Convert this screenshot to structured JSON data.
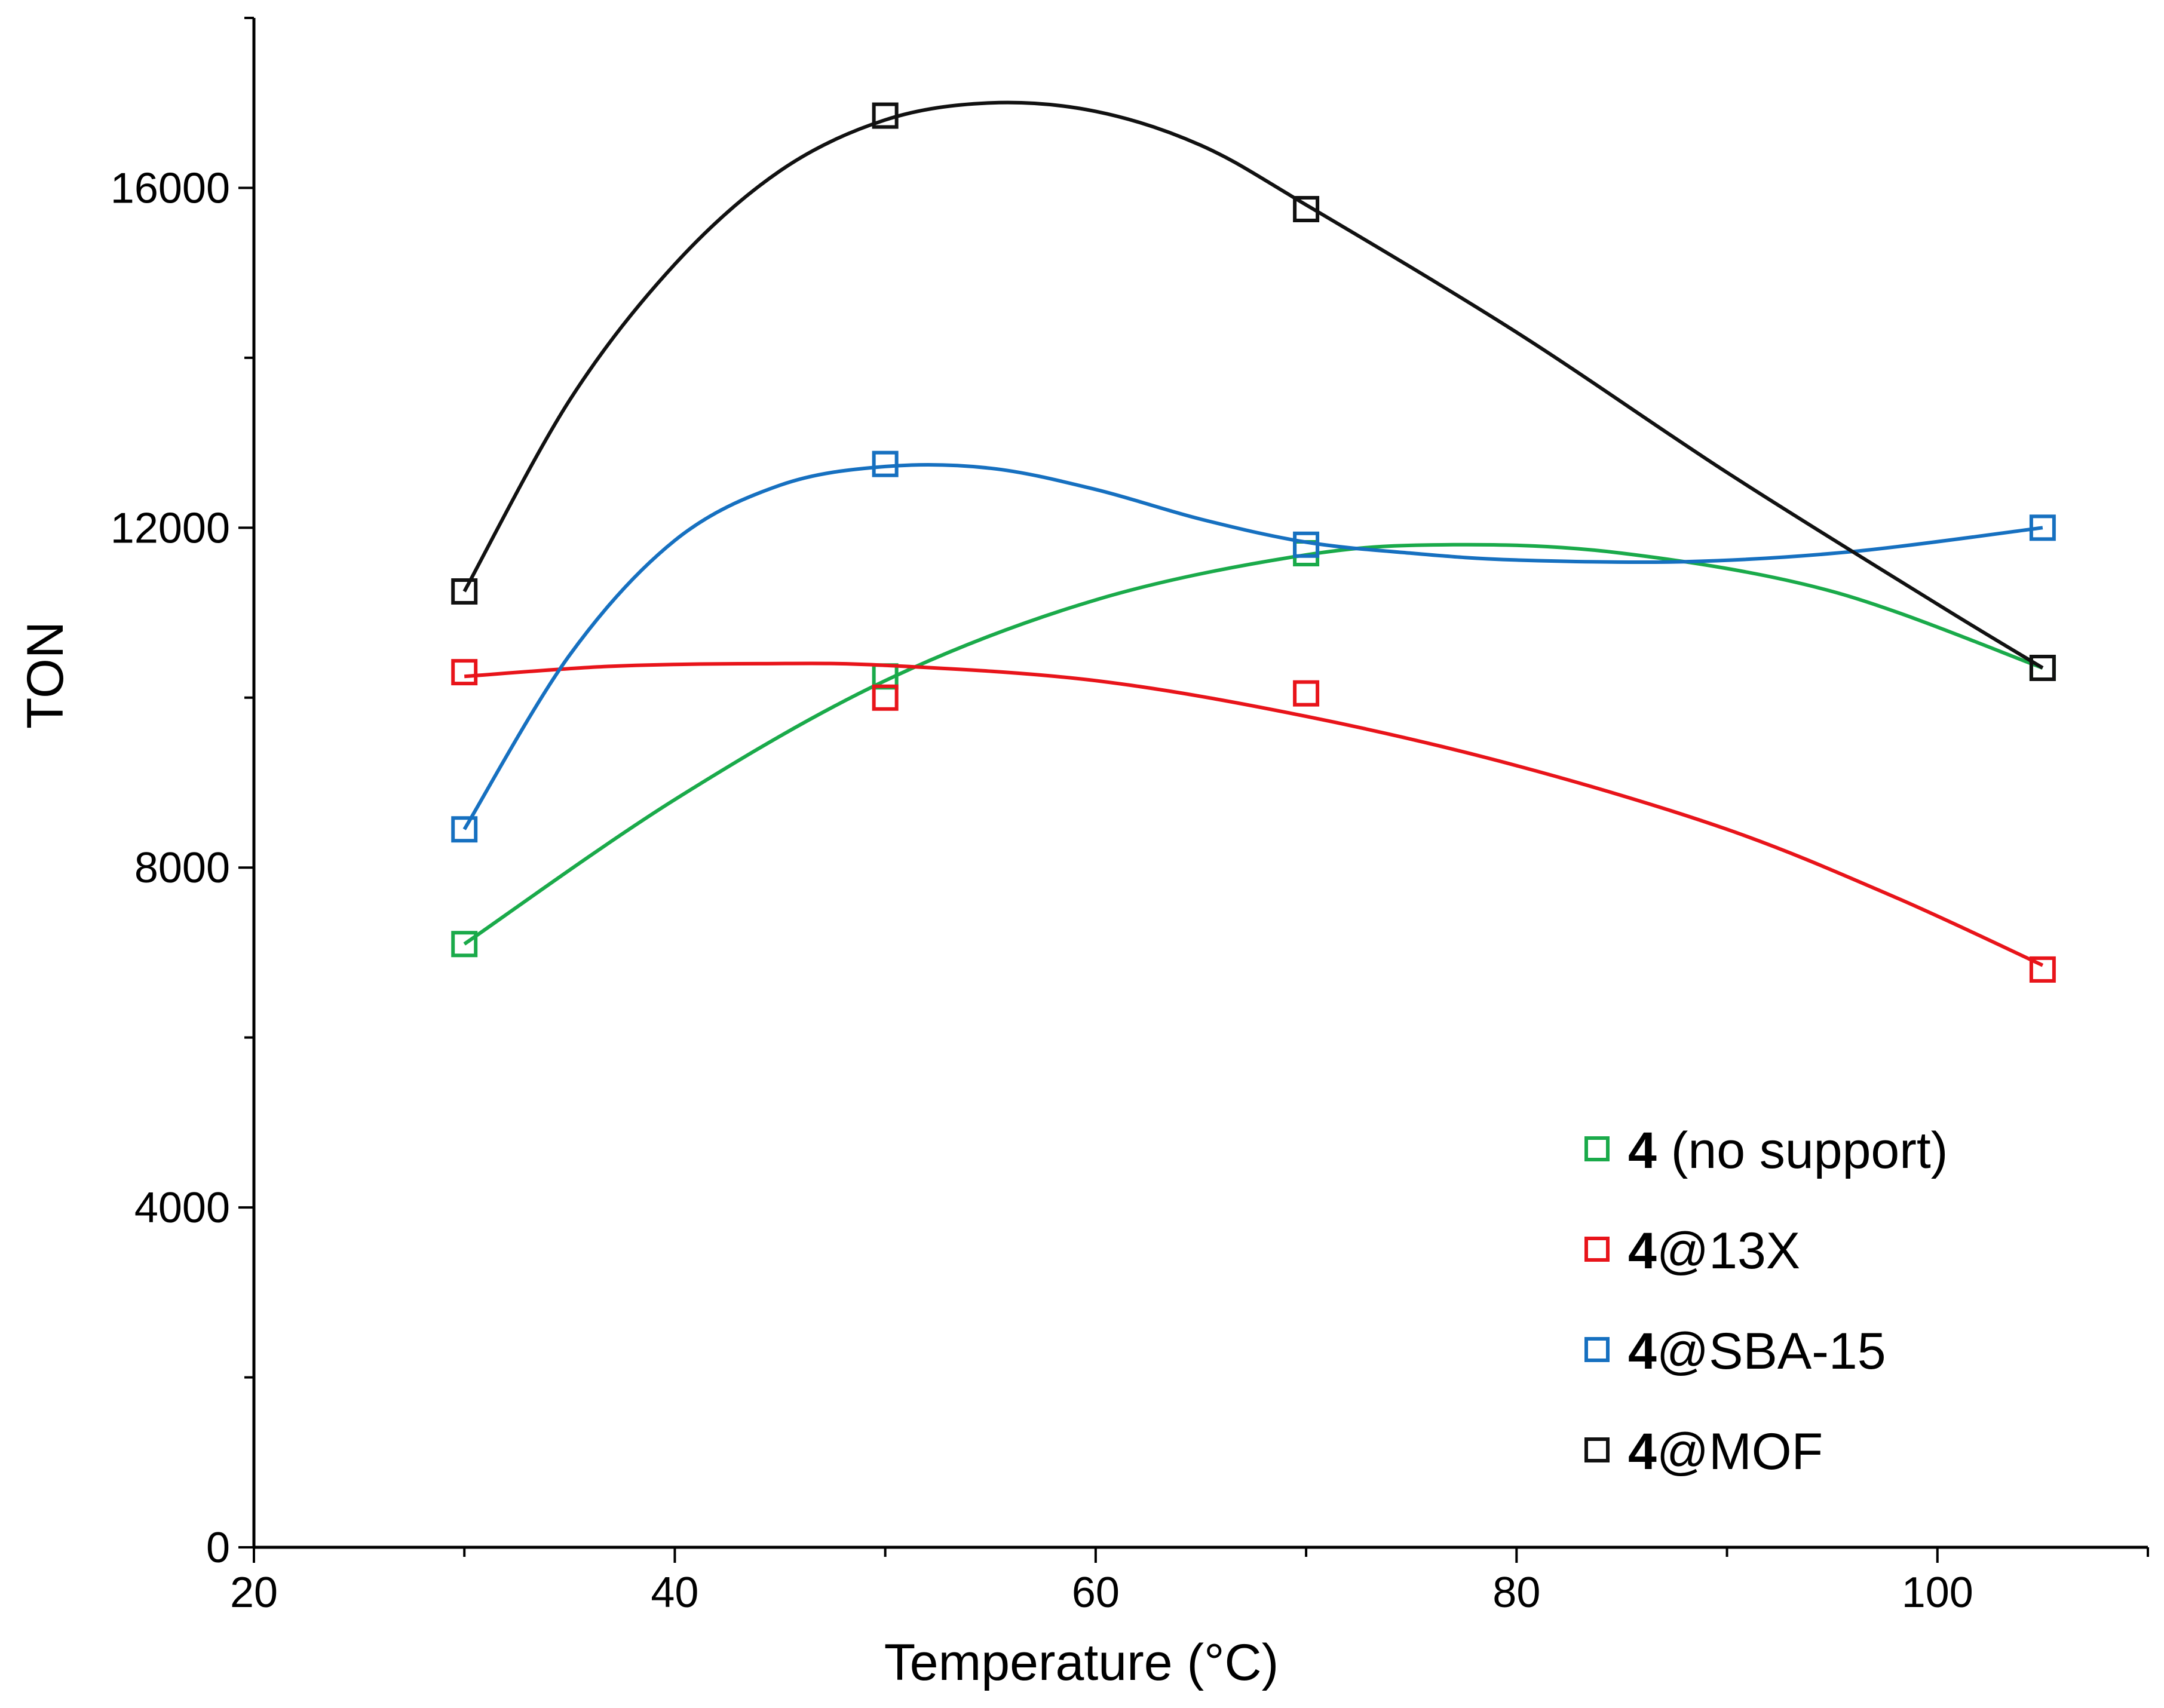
{
  "chart_data": {
    "type": "scatter",
    "xlabel": "Temperature (°C)",
    "ylabel": "TON",
    "xlim": [
      20,
      110
    ],
    "ylim": [
      0,
      18000
    ],
    "x_ticks": [
      20,
      40,
      60,
      80,
      100
    ],
    "y_ticks": [
      0,
      4000,
      8000,
      12000,
      16000
    ],
    "x_tick_labels": [
      "20",
      "40",
      "60",
      "80",
      "100"
    ],
    "y_tick_labels": [
      "0",
      "4000",
      "8000",
      "12000",
      "16000"
    ],
    "grid": false,
    "legend_position": "bottom-right",
    "marker": "open-square",
    "series": [
      {
        "name": "4 (no support)",
        "label_bold": "4",
        "label_rest": " (no support)",
        "color": "#1aaa4a",
        "x": [
          30,
          50,
          70,
          105
        ],
        "y": [
          7100,
          10250,
          11700,
          10350
        ],
        "fit_curve": [
          [
            30,
            7100
          ],
          [
            40,
            8800
          ],
          [
            50,
            10200
          ],
          [
            60,
            11150
          ],
          [
            70,
            11680
          ],
          [
            77,
            11800
          ],
          [
            85,
            11700
          ],
          [
            95,
            11250
          ],
          [
            105,
            10350
          ]
        ]
      },
      {
        "name": "4@13X",
        "label_bold": "4",
        "label_rest": "@13X",
        "color": "#e8141a",
        "x": [
          30,
          50,
          70,
          105
        ],
        "y": [
          10300,
          10000,
          10050,
          6800
        ],
        "fit_curve": [
          [
            30,
            10250
          ],
          [
            37,
            10370
          ],
          [
            44,
            10400
          ],
          [
            50,
            10380
          ],
          [
            60,
            10200
          ],
          [
            70,
            9780
          ],
          [
            80,
            9200
          ],
          [
            90,
            8450
          ],
          [
            98,
            7650
          ],
          [
            105,
            6850
          ]
        ]
      },
      {
        "name": "4@SBA-15",
        "label_bold": "4",
        "label_rest": "@SBA-15",
        "color": "#1670c0",
        "x": [
          30,
          50,
          70,
          105
        ],
        "y": [
          8450,
          12750,
          11800,
          12000
        ],
        "fit_curve": [
          [
            30,
            8450
          ],
          [
            35,
            10500
          ],
          [
            40,
            11850
          ],
          [
            45,
            12500
          ],
          [
            50,
            12720
          ],
          [
            55,
            12700
          ],
          [
            60,
            12450
          ],
          [
            65,
            12100
          ],
          [
            70,
            11830
          ],
          [
            75,
            11700
          ],
          [
            80,
            11620
          ],
          [
            88,
            11600
          ],
          [
            96,
            11720
          ],
          [
            105,
            12000
          ]
        ]
      },
      {
        "name": "4@MOF",
        "label_bold": "4",
        "label_rest": "@MOF",
        "color": "#111111",
        "x": [
          30,
          50,
          70,
          105
        ],
        "y": [
          11250,
          16850,
          15750,
          10350
        ],
        "fit_curve": [
          [
            30,
            11250
          ],
          [
            35,
            13500
          ],
          [
            40,
            15100
          ],
          [
            45,
            16200
          ],
          [
            50,
            16800
          ],
          [
            55,
            17000
          ],
          [
            60,
            16900
          ],
          [
            65,
            16500
          ],
          [
            70,
            15800
          ],
          [
            80,
            14300
          ],
          [
            90,
            12650
          ],
          [
            100,
            11100
          ],
          [
            105,
            10350
          ]
        ]
      }
    ]
  }
}
